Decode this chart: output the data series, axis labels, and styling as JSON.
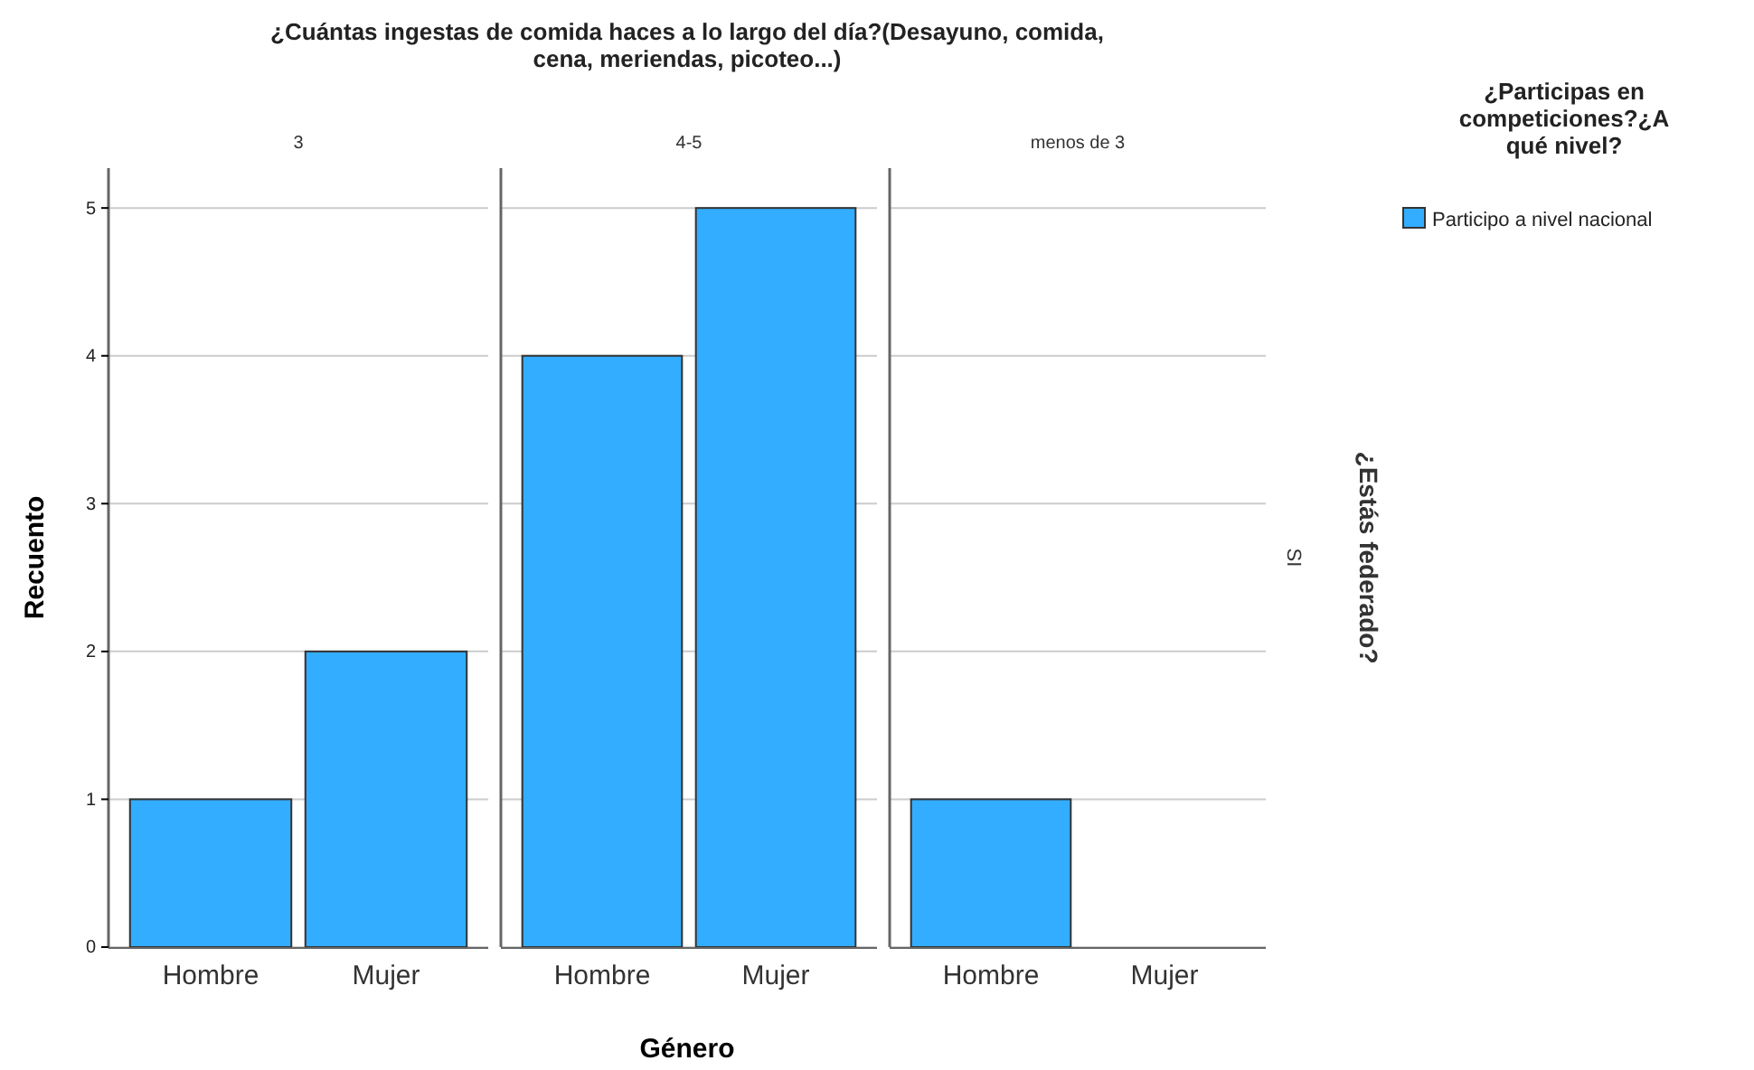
{
  "chart_data": [
    {
      "type": "bar",
      "title": "¿Cuántas ingestas de comida haces a lo largo del día?(Desayuno, comida, cena, meriendas, picoteo...)",
      "subtitle": "3",
      "ylabel": "Recuento",
      "categories": [
        "Hombre",
        "Mujer"
      ],
      "series": [
        {
          "color": "#33adff",
          "values": [
            1,
            2
          ]
        }
      ],
      "ylim": [
        0,
        5.27
      ],
      "yticks": [
        0,
        1,
        2,
        3,
        4,
        5
      ],
      "grid": "y"
    },
    {
      "type": "bar",
      "subtitle": "4-5",
      "xlabel": "Género",
      "categories": [
        "Hombre",
        "Mujer"
      ],
      "series": [
        {
          "color": "#33adff",
          "values": [
            4,
            5
          ]
        }
      ],
      "ylim": [
        0,
        5.27
      ],
      "yticks": [
        0,
        1,
        2,
        3,
        4,
        5
      ],
      "grid": "y",
      "tick_labels": "x"
    },
    {
      "type": "bar",
      "subtitle": "menos de 3",
      "categories": [
        "Hombre",
        "Mujer"
      ],
      "legend_title": "¿Participas en competiciones?¿A qué nivel?",
      "legend": "right",
      "series": [
        {
          "name": "Participo a nivel nacional",
          "color": "#33adff",
          "values": [
            1,
            0
          ]
        }
      ],
      "ylim": [
        0,
        5.27
      ],
      "yticks": [
        0,
        1,
        2,
        3,
        4,
        5
      ],
      "grid": "y",
      "tick_labels": "x",
      "annotations": [
        "¿Estás federado?",
        "SI"
      ]
    }
  ]
}
